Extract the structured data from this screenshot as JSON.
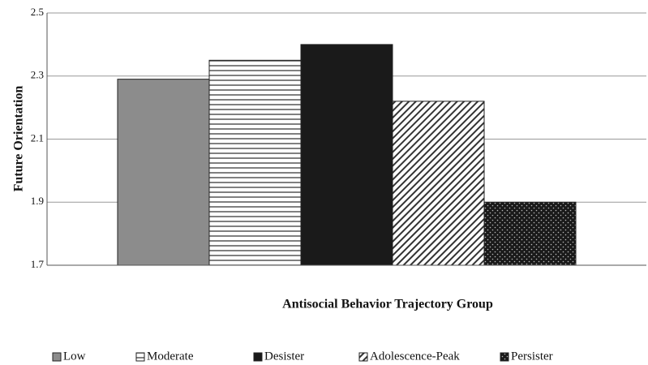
{
  "chart_data": {
    "type": "bar",
    "x_label": "Antisocial Behavior Trajectory Group",
    "y_label": "Future Orientation",
    "categories": [
      null
    ],
    "series": [
      {
        "name": "Low",
        "color": "#8c8c8c",
        "pattern": "solid",
        "values": [
          2.29
        ]
      },
      {
        "name": "Moderate",
        "color": "#555555",
        "pattern": "horizontal",
        "values": [
          2.35
        ]
      },
      {
        "name": "Desister",
        "color": "#1a1a1a",
        "pattern": "solid",
        "values": [
          2.4
        ]
      },
      {
        "name": "Adolescence-Peak",
        "color": "#333333",
        "pattern": "diagonal",
        "values": [
          2.22
        ]
      },
      {
        "name": "Persister",
        "color": "#1a1a1a",
        "pattern": "dots",
        "values": [
          1.9
        ]
      }
    ],
    "ylim": [
      1.7,
      2.5
    ],
    "yticks": [
      1.7,
      1.9,
      2.1,
      2.3,
      2.5
    ],
    "grid": true,
    "legend": "bottom"
  }
}
